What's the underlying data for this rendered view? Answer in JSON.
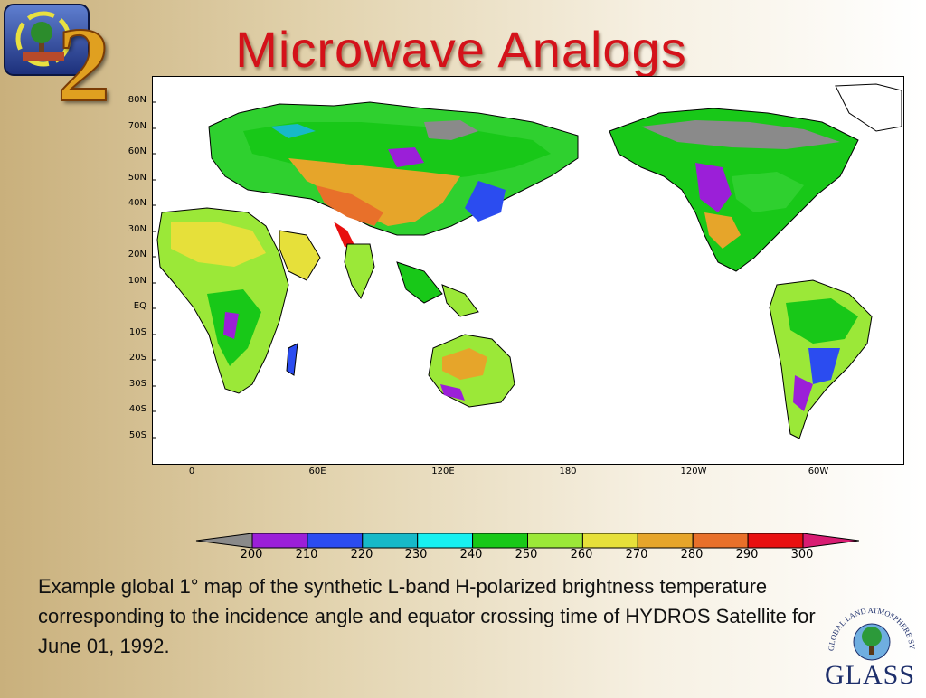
{
  "slide": {
    "title": "Microwave Analogs",
    "caption": "Example global 1° map of the synthetic L-band H-polarized brightness temperature corresponding to the incidence angle and equator crossing time of HYDROS Satellite for June 01, 1992.",
    "logo_right_text": "GLASS",
    "logo_right_ring_text": "GLOBAL LAND ATMOSPHERE SYSTEM STUDY",
    "logo_left_numeral": "2"
  },
  "map": {
    "lat_labels": [
      "80N",
      "70N",
      "60N",
      "50N",
      "40N",
      "30N",
      "20N",
      "10N",
      "EQ",
      "10S",
      "20S",
      "30S",
      "40S",
      "50S"
    ],
    "lon_labels": [
      "0",
      "60E",
      "120E",
      "180",
      "120W",
      "60W"
    ]
  },
  "colorbar": {
    "ticks": [
      "200",
      "210",
      "220",
      "230",
      "240",
      "250",
      "260",
      "270",
      "280",
      "290",
      "300"
    ],
    "colors": [
      "#8a8a8a",
      "#9b1fd8",
      "#2b4cf0",
      "#17b9c8",
      "#17f0f0",
      "#18c818",
      "#9be838",
      "#e6e03a",
      "#e6a52a",
      "#e8702a",
      "#e81010",
      "#d81c72"
    ]
  }
}
